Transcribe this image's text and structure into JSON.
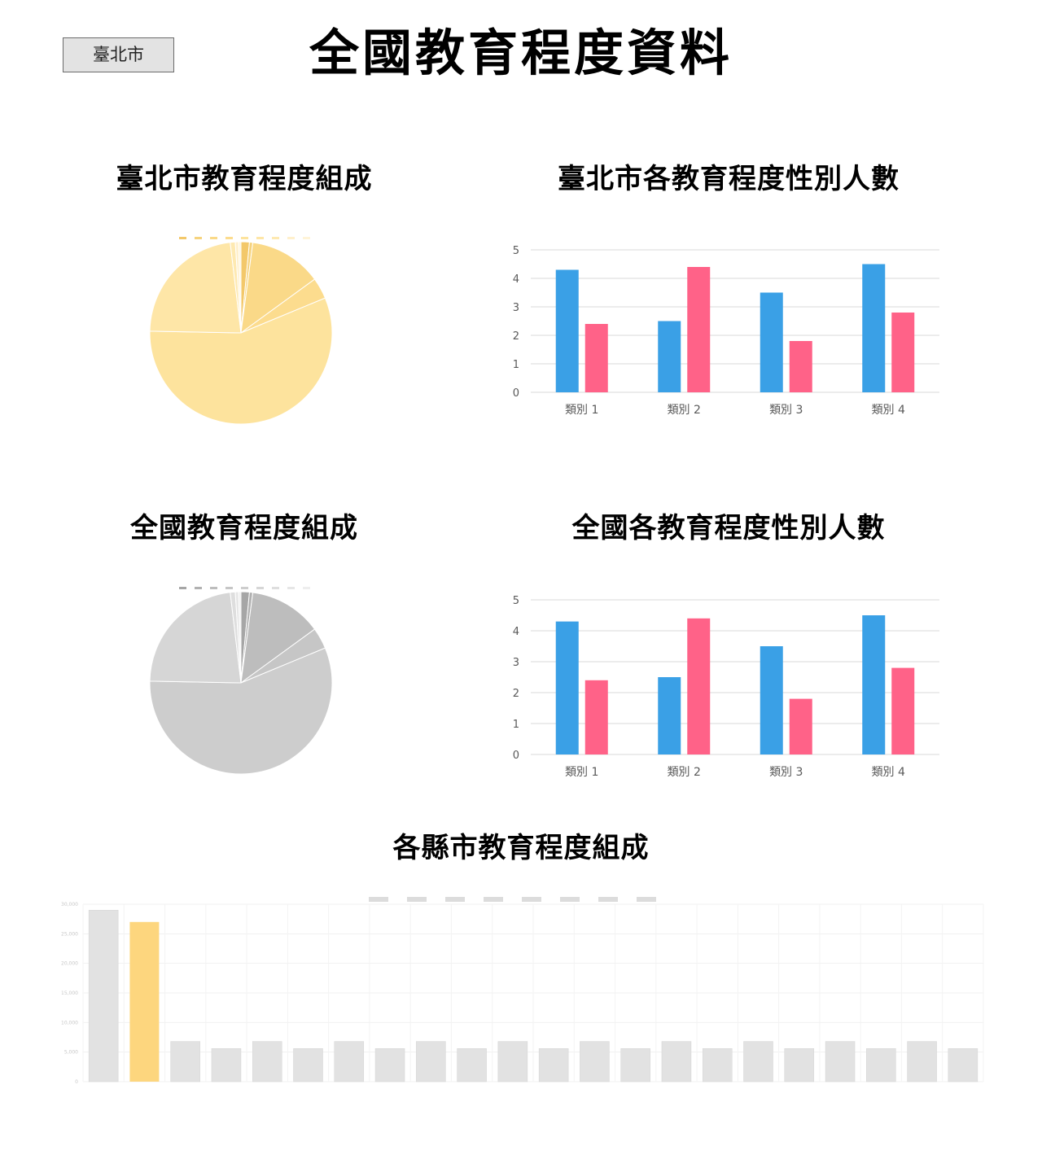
{
  "city_select": {
    "value": "臺北市"
  },
  "page_title": "全國教育程度資料",
  "charts": [
    {
      "id": "taipei-pie",
      "type": "pie",
      "title": "臺北市教育程度組成",
      "legend": [
        "",
        "",
        "",
        "",
        "",
        "",
        "",
        "",
        ""
      ],
      "legend_position": "top",
      "slice_colors": [
        "#f3c86a",
        "#f6d37e",
        "#fad988",
        "#fcdc8e",
        "#fde39d",
        "#fee6a7",
        "#fee9b1",
        "#fff0cc",
        "#fff4d8"
      ],
      "values": [
        1.5,
        0.6,
        13.0,
        3.8,
        57.0,
        23.0,
        0.9,
        0.6,
        0.4
      ]
    },
    {
      "id": "taipei-bar",
      "type": "bar",
      "title": "臺北市各教育程度性別人數",
      "categories": [
        "類別 1",
        "類別 2",
        "類別 3",
        "類別 4"
      ],
      "series": [
        {
          "values": [
            4.3,
            2.5,
            3.5,
            4.5
          ],
          "color": "#3aa0e6"
        },
        {
          "values": [
            2.4,
            4.4,
            1.8,
            2.8
          ],
          "color": "#ff6288"
        }
      ],
      "ylim": [
        0,
        5
      ],
      "yticks": [
        0,
        1,
        2,
        3,
        4,
        5
      ],
      "grid": true
    },
    {
      "id": "national-pie",
      "type": "pie",
      "title": "全國教育程度組成",
      "legend": [
        "",
        "",
        "",
        "",
        "",
        "",
        "",
        "",
        ""
      ],
      "legend_position": "top",
      "slice_colors": [
        "#a6a6a6",
        "#b1b1b1",
        "#bdbdbd",
        "#c6c6c6",
        "#cdcdcd",
        "#d6d6d6",
        "#dedede",
        "#e6e6e6",
        "#eeeeee"
      ],
      "values": [
        1.5,
        0.6,
        13.0,
        3.8,
        57.0,
        23.0,
        0.9,
        0.6,
        0.4
      ]
    },
    {
      "id": "national-bar",
      "type": "bar",
      "title": "全國各教育程度性別人數",
      "categories": [
        "類別 1",
        "類別 2",
        "類別 3",
        "類別 4"
      ],
      "series": [
        {
          "values": [
            4.3,
            2.5,
            3.5,
            4.5
          ],
          "color": "#3aa0e6"
        },
        {
          "values": [
            2.4,
            4.4,
            1.8,
            2.8
          ],
          "color": "#ff6288"
        }
      ],
      "ylim": [
        0,
        5
      ],
      "yticks": [
        0,
        1,
        2,
        3,
        4,
        5
      ],
      "grid": true
    },
    {
      "id": "county-bar",
      "type": "bar",
      "title": "各縣市教育程度組成",
      "categories": [
        "",
        "",
        "",
        "",
        "",
        "",
        "",
        "",
        "",
        "",
        "",
        "",
        "",
        "",
        "",
        "",
        "",
        "",
        "",
        "",
        "",
        ""
      ],
      "values": [
        29000,
        27000,
        6800,
        5600,
        6800,
        5600,
        6800,
        5600,
        6800,
        5600,
        6800,
        5600,
        6800,
        5600,
        6800,
        5600,
        6800,
        5600,
        6800,
        5600,
        6800,
        5600
      ],
      "highlight_index": 1,
      "highlight_color": "#fdd67e",
      "base_color": "#e2e2e2",
      "ylim": [
        0,
        30000
      ],
      "yticks": [
        0,
        5000,
        10000,
        15000,
        20000,
        25000,
        30000
      ],
      "legend": [
        "",
        "",
        "",
        "",
        "",
        "",
        "",
        ""
      ],
      "legend_position": "top",
      "grid": true
    }
  ]
}
